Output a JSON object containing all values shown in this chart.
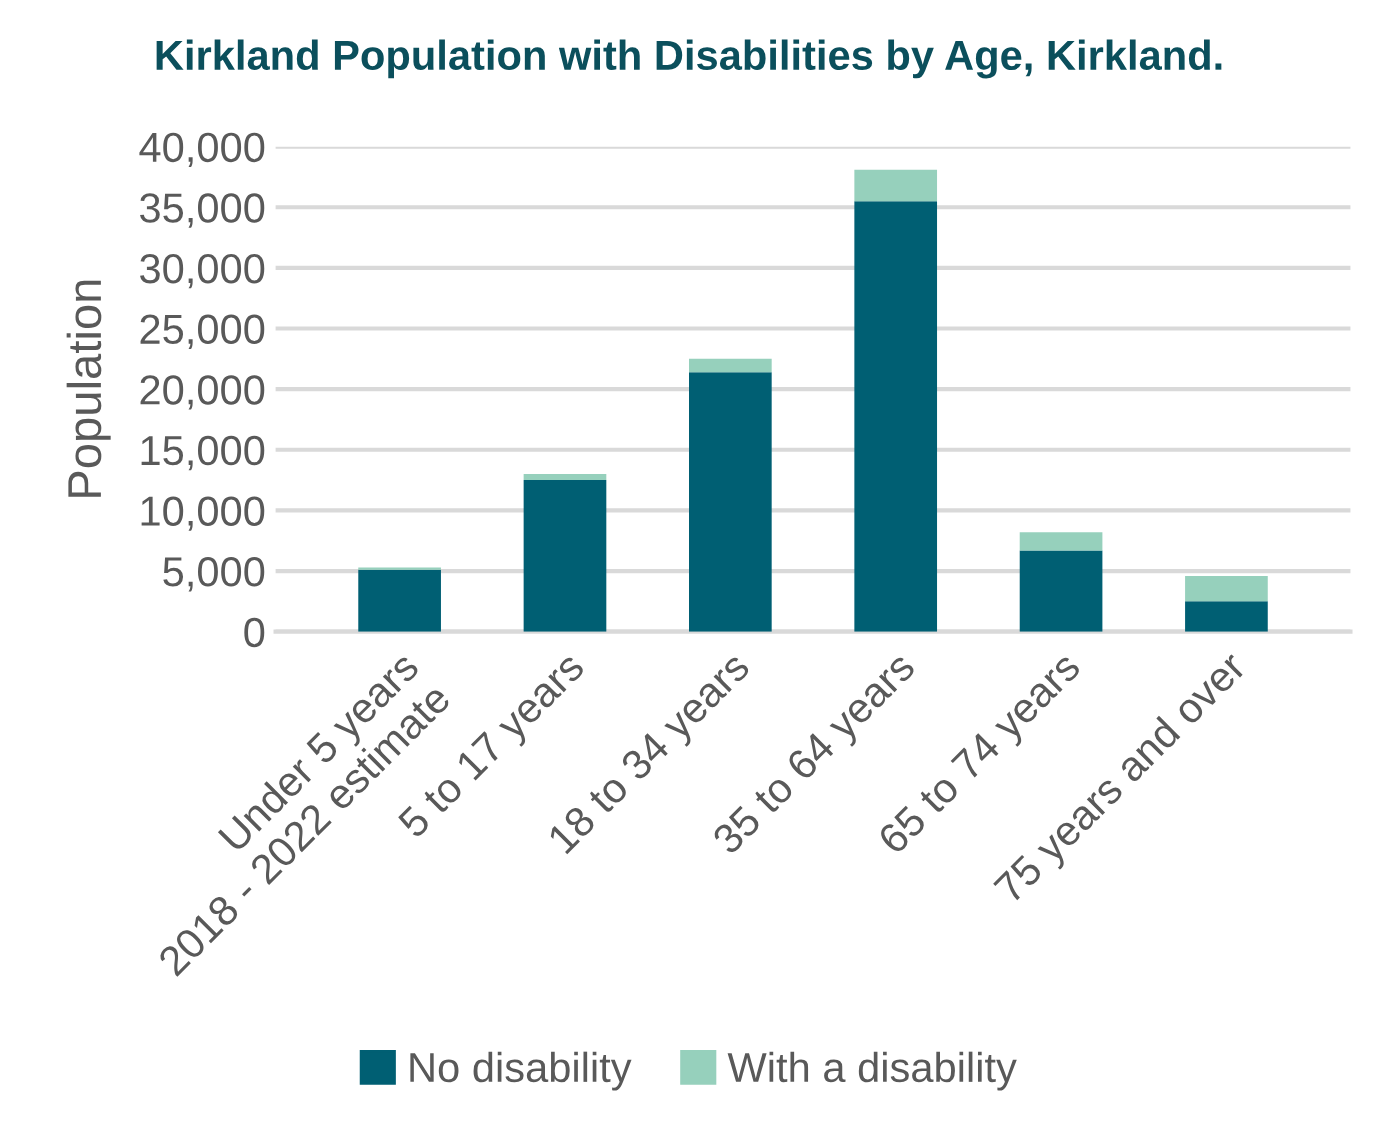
{
  "chart_data": {
    "type": "bar",
    "title": "Kirkland Population with Disabilities by Age, Kirkland.",
    "ylabel": "Population",
    "categories": [
      "Under 5 years\n2018 - 2022 estimate",
      "5 to 17 years",
      "18 to 34 years",
      "35 to 64 years",
      "65 to 74 years",
      "75 years and over"
    ],
    "series": [
      {
        "name": "No disability",
        "color": "#005f73",
        "values": [
          5100,
          12500,
          21400,
          35500,
          6700,
          2500
        ]
      },
      {
        "name": "With a disability",
        "color": "#96d0bc",
        "values": [
          200,
          500,
          1100,
          2600,
          1500,
          2100
        ]
      }
    ],
    "stacked": true,
    "ylim": [
      0,
      40000
    ],
    "yticks": [
      {
        "value": 0,
        "label": "0"
      },
      {
        "value": 5000,
        "label": "5,000"
      },
      {
        "value": 10000,
        "label": "10,000"
      },
      {
        "value": 15000,
        "label": "15,000"
      },
      {
        "value": 20000,
        "label": "20,000"
      },
      {
        "value": 25000,
        "label": "25,000"
      },
      {
        "value": 30000,
        "label": "30,000"
      },
      {
        "value": 35000,
        "label": "35,000"
      },
      {
        "value": 40000,
        "label": "40,000"
      }
    ],
    "grid": "y",
    "legend": "bottom"
  }
}
